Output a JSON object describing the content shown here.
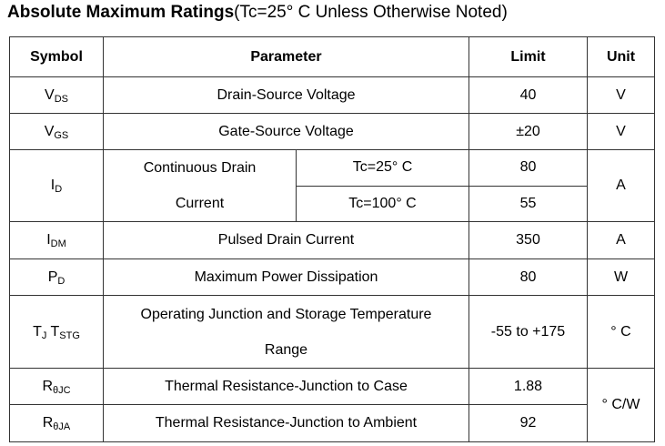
{
  "title": {
    "bold": "Absolute Maximum Ratings",
    "rest": "(Tc=25° C Unless Otherwise Noted)"
  },
  "headers": {
    "symbol": "Symbol",
    "parameter": "Parameter",
    "limit": "Limit",
    "unit": "Unit"
  },
  "rows": {
    "vds": {
      "sym": "V",
      "sub": "DS",
      "param": "Drain-Source Voltage",
      "limit": "40",
      "unit": "V"
    },
    "vgs": {
      "sym": "V",
      "sub": "GS",
      "param": "Gate-Source Voltage",
      "limit": "±20",
      "unit": "V"
    },
    "id": {
      "sym": "I",
      "sub": "D",
      "param_line1": "Continuous Drain",
      "param_line2": "Current",
      "cond1": "Tc=25° C",
      "cond2": "Tc=100° C",
      "limit1": "80",
      "limit2": "55",
      "unit": "A"
    },
    "idm": {
      "sym": "I",
      "sub": "DM",
      "param": "Pulsed Drain Current",
      "limit": "350",
      "unit": "A"
    },
    "pd": {
      "sym": "P",
      "sub": "D",
      "param": "Maximum Power Dissipation",
      "limit": "80",
      "unit": "W"
    },
    "tj": {
      "sym1": "T",
      "sub1": "J",
      "sym2": "T",
      "sub2": "STG",
      "param_line1": "Operating Junction and Storage Temperature",
      "param_line2": "Range",
      "limit": "-55 to +175",
      "unit": "° C"
    },
    "rjc": {
      "sym": "R",
      "sub": "θJC",
      "param": "Thermal Resistance-Junction to Case",
      "limit": "1.88"
    },
    "rja": {
      "sym": "R",
      "sub": "θJA",
      "param": "Thermal Resistance-Junction to Ambient",
      "limit": "92"
    },
    "rth_unit": "° C/W"
  }
}
